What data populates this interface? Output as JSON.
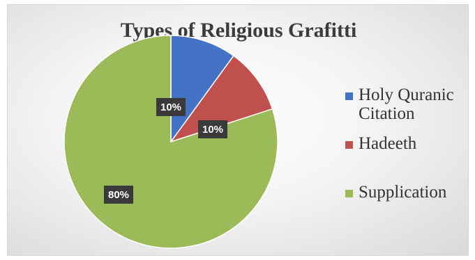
{
  "chart_data": {
    "type": "pie",
    "title": "Types of Religious Grafitti",
    "categories": [
      "Holy Quranic Citation",
      "Hadeeth",
      "Supplication"
    ],
    "values": [
      10,
      10,
      80
    ],
    "data_labels": [
      "10%",
      "10%",
      "80%"
    ],
    "colors": [
      "#4472c4",
      "#c0504d",
      "#9bbb59"
    ],
    "legend_position": "right",
    "legend": [
      {
        "lines": [
          "Holy Quranic",
          "Citation"
        ],
        "color": "#4472c4"
      },
      {
        "lines": [
          "Hadeeth"
        ],
        "color": "#c0504d"
      },
      {
        "lines": [
          "Supplication"
        ],
        "color": "#9bbb59"
      }
    ]
  }
}
